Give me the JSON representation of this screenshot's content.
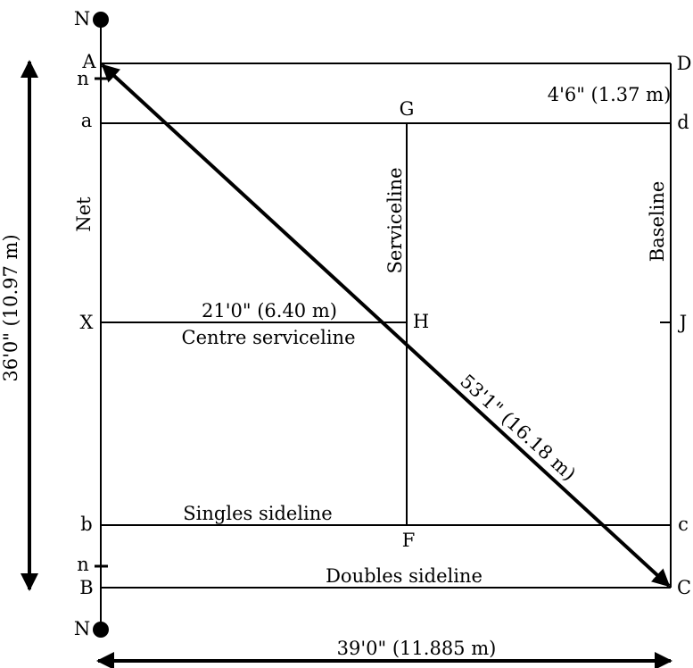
{
  "points": {
    "N_top": "N",
    "N_bottom": "N",
    "A": "A",
    "B": "B",
    "C": "C",
    "D": "D",
    "a": "a",
    "b": "b",
    "c": "c",
    "d": "d",
    "G": "G",
    "H": "H",
    "F": "F",
    "J": "J",
    "X": "X",
    "n_top": "n",
    "n_bottom": "n"
  },
  "labels": {
    "net": "Net",
    "serviceline": "Serviceline",
    "baseline": "Baseline",
    "centre_serviceline": "Centre serviceline",
    "singles_sideline": "Singles sideline",
    "doubles_sideline": "Doubles sideline"
  },
  "dimensions": {
    "alley": "4'6\" (1.37 m)",
    "service_depth": "21'0\" (6.40 m)",
    "diagonal": "53'1\" (16.18 m)",
    "court_width": "36'0\" (10.97 m)",
    "half_length": "39'0\" (11.885 m)"
  }
}
